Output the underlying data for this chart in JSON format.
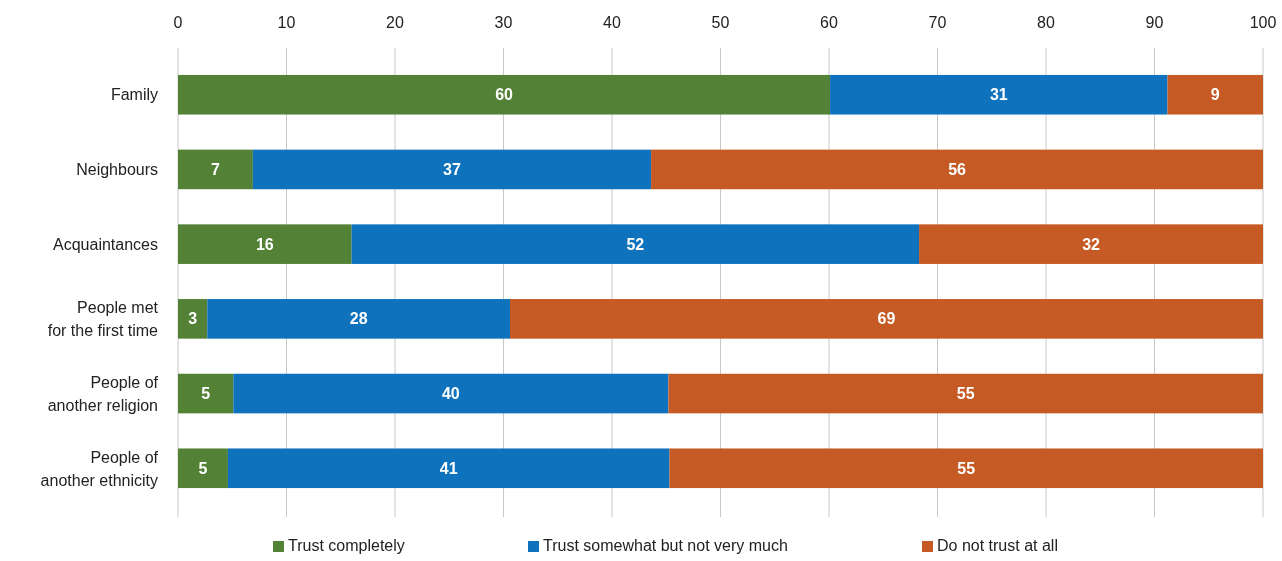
{
  "chart_data": {
    "type": "bar",
    "orientation": "horizontal",
    "stacked": true,
    "categories": [
      "Family",
      "Neighbours",
      "Acquaintances",
      "People met\nfor the first time",
      "People of\nanother religion",
      "People of\nanother ethnicity"
    ],
    "series": [
      {
        "name": "Trust completely",
        "color": "#538135",
        "values": [
          60.1,
          6.9,
          16.0,
          2.7,
          5.1,
          4.6
        ],
        "value_labels": [
          "60",
          "7",
          "16",
          "3",
          "5",
          "5"
        ]
      },
      {
        "name": "Trust somewhat but not very much",
        "color": "#0e72bd",
        "values": [
          31.1,
          36.7,
          52.3,
          27.9,
          40.1,
          40.7
        ],
        "value_labels": [
          "31",
          "37",
          "52",
          "28",
          "40",
          "41"
        ]
      },
      {
        "name": "Do not trust at all",
        "color": "#c55a25",
        "values": [
          8.8,
          56.4,
          31.7,
          69.4,
          54.8,
          54.7
        ],
        "value_labels": [
          "9",
          "56",
          "32",
          "69",
          "55",
          "55"
        ]
      }
    ],
    "xlim": [
      0,
      100
    ],
    "xticks": [
      0,
      10,
      20,
      30,
      40,
      50,
      60,
      70,
      80,
      90,
      100
    ],
    "grid": "x",
    "legend": "bottom"
  }
}
